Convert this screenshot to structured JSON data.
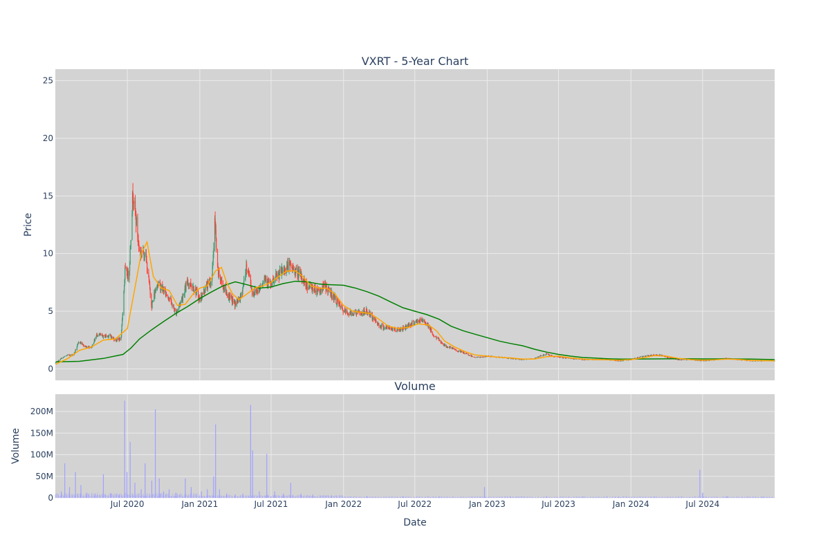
{
  "chart_data": [
    {
      "type": "candlestick",
      "title": "VXRT - 5-Year Chart",
      "xlabel": "",
      "ylabel": "Price",
      "ylim": [
        -1,
        26
      ],
      "yticks": [
        0,
        5,
        10,
        15,
        20,
        25
      ],
      "xlim": [
        "2019-12-31",
        "2024-12-31"
      ],
      "x_ticks": [
        {
          "date": "2020-07-01",
          "label": "Jul 2020"
        },
        {
          "date": "2021-01-01",
          "label": "Jan 2021"
        },
        {
          "date": "2021-07-01",
          "label": "Jul 2021"
        },
        {
          "date": "2022-01-01",
          "label": "Jan 2022"
        },
        {
          "date": "2022-07-01",
          "label": "Jul 2022"
        },
        {
          "date": "2023-01-01",
          "label": "Jan 2023"
        },
        {
          "date": "2023-07-01",
          "label": "Jul 2023"
        },
        {
          "date": "2024-01-01",
          "label": "Jan 2024"
        },
        {
          "date": "2024-07-01",
          "label": "Jul 2024"
        }
      ],
      "grid": true,
      "legend": "none",
      "colors": {
        "increasing": "#3d9970",
        "decreasing": "#ff4136",
        "ma_short": "#ffa500",
        "ma_long": "#008000",
        "plot_bg": "#d3d3d3",
        "grid": "#ebebeb"
      },
      "close_series": [
        [
          "2020-01-01",
          0.5
        ],
        [
          "2020-01-15",
          0.9
        ],
        [
          "2020-02-01",
          1.2
        ],
        [
          "2020-02-15",
          1.2
        ],
        [
          "2020-03-01",
          2.4
        ],
        [
          "2020-03-15",
          1.9
        ],
        [
          "2020-04-01",
          1.9
        ],
        [
          "2020-04-15",
          3.0
        ],
        [
          "2020-05-01",
          2.8
        ],
        [
          "2020-05-15",
          2.9
        ],
        [
          "2020-06-01",
          2.5
        ],
        [
          "2020-06-15",
          2.6
        ],
        [
          "2020-06-25",
          8.5
        ],
        [
          "2020-07-05",
          8.0
        ],
        [
          "2020-07-15",
          15.5
        ],
        [
          "2020-08-01",
          10.0
        ],
        [
          "2020-08-15",
          10.2
        ],
        [
          "2020-09-01",
          5.5
        ],
        [
          "2020-09-15",
          7.5
        ],
        [
          "2020-10-01",
          6.8
        ],
        [
          "2020-10-15",
          6.2
        ],
        [
          "2020-11-01",
          4.8
        ],
        [
          "2020-11-15",
          6.0
        ],
        [
          "2020-12-01",
          7.5
        ],
        [
          "2020-12-15",
          7.2
        ],
        [
          "2021-01-01",
          6.0
        ],
        [
          "2021-01-15",
          7.0
        ],
        [
          "2021-02-01",
          7.8
        ],
        [
          "2021-02-08",
          13.0
        ],
        [
          "2021-02-15",
          8.5
        ],
        [
          "2021-03-01",
          7.2
        ],
        [
          "2021-03-15",
          6.3
        ],
        [
          "2021-04-01",
          5.6
        ],
        [
          "2021-04-15",
          6.2
        ],
        [
          "2021-05-01",
          9.0
        ],
        [
          "2021-05-15",
          6.5
        ],
        [
          "2021-06-01",
          7.0
        ],
        [
          "2021-06-15",
          8.0
        ],
        [
          "2021-07-01",
          7.2
        ],
        [
          "2021-07-15",
          8.0
        ],
        [
          "2021-08-01",
          8.5
        ],
        [
          "2021-08-15",
          9.0
        ],
        [
          "2021-09-01",
          8.5
        ],
        [
          "2021-09-15",
          8.0
        ],
        [
          "2021-10-01",
          7.2
        ],
        [
          "2021-10-15",
          7.0
        ],
        [
          "2021-11-01",
          6.8
        ],
        [
          "2021-11-15",
          7.2
        ],
        [
          "2021-12-01",
          6.5
        ],
        [
          "2021-12-15",
          5.8
        ],
        [
          "2022-01-01",
          5.0
        ],
        [
          "2022-01-15",
          4.8
        ],
        [
          "2022-02-01",
          4.9
        ],
        [
          "2022-02-15",
          4.8
        ],
        [
          "2022-03-01",
          5.0
        ],
        [
          "2022-03-15",
          4.5
        ],
        [
          "2022-04-01",
          3.8
        ],
        [
          "2022-04-15",
          3.6
        ],
        [
          "2022-05-01",
          3.5
        ],
        [
          "2022-05-15",
          3.4
        ],
        [
          "2022-06-01",
          3.5
        ],
        [
          "2022-06-15",
          3.8
        ],
        [
          "2022-07-01",
          4.0
        ],
        [
          "2022-07-15",
          4.2
        ],
        [
          "2022-08-01",
          4.0
        ],
        [
          "2022-08-15",
          3.0
        ],
        [
          "2022-09-01",
          2.5
        ],
        [
          "2022-09-15",
          2.0
        ],
        [
          "2022-10-01",
          1.8
        ],
        [
          "2022-10-15",
          1.6
        ],
        [
          "2022-11-01",
          1.4
        ],
        [
          "2022-11-15",
          1.2
        ],
        [
          "2022-12-01",
          1.0
        ],
        [
          "2022-12-15",
          1.0
        ],
        [
          "2023-01-01",
          1.1
        ],
        [
          "2023-02-01",
          1.0
        ],
        [
          "2023-03-01",
          0.9
        ],
        [
          "2023-04-01",
          0.8
        ],
        [
          "2023-05-01",
          0.9
        ],
        [
          "2023-06-01",
          1.3
        ],
        [
          "2023-06-15",
          1.1
        ],
        [
          "2023-07-01",
          1.0
        ],
        [
          "2023-08-01",
          0.9
        ],
        [
          "2023-09-01",
          0.8
        ],
        [
          "2023-10-01",
          0.8
        ],
        [
          "2023-11-01",
          0.8
        ],
        [
          "2023-12-01",
          0.7
        ],
        [
          "2024-01-01",
          0.8
        ],
        [
          "2024-02-01",
          1.1
        ],
        [
          "2024-03-01",
          1.2
        ],
        [
          "2024-03-15",
          1.2
        ],
        [
          "2024-04-01",
          1.0
        ],
        [
          "2024-05-01",
          0.8
        ],
        [
          "2024-06-01",
          0.8
        ],
        [
          "2024-07-01",
          0.7
        ],
        [
          "2024-08-01",
          0.8
        ],
        [
          "2024-09-01",
          0.9
        ],
        [
          "2024-10-01",
          0.8
        ],
        [
          "2024-11-01",
          0.7
        ],
        [
          "2024-12-01",
          0.7
        ],
        [
          "2024-12-31",
          0.7
        ]
      ],
      "ma_short": [
        [
          "2020-01-01",
          0.4
        ],
        [
          "2020-02-01",
          0.9
        ],
        [
          "2020-03-01",
          1.6
        ],
        [
          "2020-04-01",
          1.9
        ],
        [
          "2020-05-01",
          2.5
        ],
        [
          "2020-06-01",
          2.6
        ],
        [
          "2020-07-01",
          3.5
        ],
        [
          "2020-07-20",
          7.0
        ],
        [
          "2020-08-05",
          10.0
        ],
        [
          "2020-08-20",
          11.0
        ],
        [
          "2020-09-05",
          8.0
        ],
        [
          "2020-09-25",
          7.0
        ],
        [
          "2020-10-15",
          6.8
        ],
        [
          "2020-11-05",
          5.5
        ],
        [
          "2020-11-25",
          5.6
        ],
        [
          "2020-12-15",
          6.5
        ],
        [
          "2021-01-01",
          7.0
        ],
        [
          "2021-01-20",
          7.2
        ],
        [
          "2021-02-10",
          8.5
        ],
        [
          "2021-02-25",
          8.8
        ],
        [
          "2021-03-10",
          7.5
        ],
        [
          "2021-03-25",
          6.5
        ],
        [
          "2021-04-10",
          6.0
        ],
        [
          "2021-05-01",
          6.5
        ],
        [
          "2021-05-20",
          7.0
        ],
        [
          "2021-06-10",
          7.2
        ],
        [
          "2021-07-01",
          7.5
        ],
        [
          "2021-07-20",
          8.0
        ],
        [
          "2021-08-10",
          8.5
        ],
        [
          "2021-09-01",
          8.5
        ],
        [
          "2021-09-20",
          8.0
        ],
        [
          "2021-10-10",
          7.2
        ],
        [
          "2021-11-01",
          7.0
        ],
        [
          "2021-11-20",
          7.0
        ],
        [
          "2021-12-10",
          6.5
        ],
        [
          "2022-01-01",
          5.5
        ],
        [
          "2022-01-25",
          5.0
        ],
        [
          "2022-02-15",
          4.9
        ],
        [
          "2022-03-10",
          4.8
        ],
        [
          "2022-04-01",
          4.3
        ],
        [
          "2022-04-25",
          3.7
        ],
        [
          "2022-05-20",
          3.5
        ],
        [
          "2022-06-15",
          3.6
        ],
        [
          "2022-07-10",
          3.9
        ],
        [
          "2022-08-05",
          3.8
        ],
        [
          "2022-08-25",
          3.3
        ],
        [
          "2022-09-15",
          2.4
        ],
        [
          "2022-10-10",
          1.9
        ],
        [
          "2022-11-05",
          1.5
        ],
        [
          "2022-12-01",
          1.2
        ],
        [
          "2023-01-01",
          1.1
        ],
        [
          "2023-02-01",
          1.0
        ],
        [
          "2023-03-01",
          0.95
        ],
        [
          "2023-04-01",
          0.85
        ],
        [
          "2023-05-01",
          0.85
        ],
        [
          "2023-06-01",
          1.05
        ],
        [
          "2023-07-01",
          1.1
        ],
        [
          "2023-08-01",
          0.95
        ],
        [
          "2023-09-01",
          0.85
        ],
        [
          "2023-10-01",
          0.8
        ],
        [
          "2023-11-01",
          0.78
        ],
        [
          "2023-12-01",
          0.75
        ],
        [
          "2024-01-01",
          0.8
        ],
        [
          "2024-02-01",
          0.95
        ],
        [
          "2024-03-01",
          1.15
        ],
        [
          "2024-04-01",
          1.1
        ],
        [
          "2024-05-01",
          0.9
        ],
        [
          "2024-06-01",
          0.8
        ],
        [
          "2024-07-01",
          0.75
        ],
        [
          "2024-08-01",
          0.78
        ],
        [
          "2024-09-01",
          0.85
        ],
        [
          "2024-10-01",
          0.82
        ],
        [
          "2024-11-01",
          0.72
        ],
        [
          "2024-12-31",
          0.7
        ]
      ],
      "ma_long": [
        [
          "2020-01-01",
          0.6
        ],
        [
          "2020-03-01",
          0.65
        ],
        [
          "2020-05-01",
          0.9
        ],
        [
          "2020-06-20",
          1.25
        ],
        [
          "2020-07-10",
          1.8
        ],
        [
          "2020-08-01",
          2.6
        ],
        [
          "2020-09-01",
          3.4
        ],
        [
          "2020-10-01",
          4.1
        ],
        [
          "2020-11-01",
          4.8
        ],
        [
          "2020-12-01",
          5.4
        ],
        [
          "2021-01-01",
          6.1
        ],
        [
          "2021-02-01",
          6.7
        ],
        [
          "2021-03-01",
          7.2
        ],
        [
          "2021-04-01",
          7.55
        ],
        [
          "2021-05-01",
          7.3
        ],
        [
          "2021-06-01",
          7.0
        ],
        [
          "2021-07-01",
          7.1
        ],
        [
          "2021-08-01",
          7.4
        ],
        [
          "2021-09-01",
          7.6
        ],
        [
          "2021-10-01",
          7.55
        ],
        [
          "2021-11-01",
          7.35
        ],
        [
          "2021-12-01",
          7.3
        ],
        [
          "2022-01-01",
          7.25
        ],
        [
          "2022-02-01",
          7.0
        ],
        [
          "2022-03-01",
          6.7
        ],
        [
          "2022-04-01",
          6.3
        ],
        [
          "2022-05-01",
          5.8
        ],
        [
          "2022-06-01",
          5.3
        ],
        [
          "2022-07-01",
          5.0
        ],
        [
          "2022-08-01",
          4.7
        ],
        [
          "2022-09-01",
          4.3
        ],
        [
          "2022-10-01",
          3.7
        ],
        [
          "2022-11-01",
          3.3
        ],
        [
          "2022-12-01",
          3.0
        ],
        [
          "2023-01-01",
          2.7
        ],
        [
          "2023-02-01",
          2.4
        ],
        [
          "2023-03-01",
          2.2
        ],
        [
          "2023-04-01",
          2.0
        ],
        [
          "2023-05-01",
          1.7
        ],
        [
          "2023-06-01",
          1.45
        ],
        [
          "2023-07-01",
          1.25
        ],
        [
          "2023-08-01",
          1.1
        ],
        [
          "2023-09-01",
          0.98
        ],
        [
          "2023-10-01",
          0.93
        ],
        [
          "2023-11-01",
          0.88
        ],
        [
          "2023-12-01",
          0.85
        ],
        [
          "2024-01-01",
          0.84
        ],
        [
          "2024-03-01",
          0.86
        ],
        [
          "2024-05-01",
          0.87
        ],
        [
          "2024-07-01",
          0.86
        ],
        [
          "2024-09-01",
          0.86
        ],
        [
          "2024-11-01",
          0.85
        ],
        [
          "2024-12-31",
          0.8
        ]
      ]
    },
    {
      "type": "bar",
      "title": "Volume",
      "xlabel": "Date",
      "ylabel": "Volume",
      "ylim": [
        0,
        240
      ],
      "yticks": [
        {
          "value": 0,
          "label": "0"
        },
        {
          "value": 50,
          "label": "50M"
        },
        {
          "value": 100,
          "label": "100M"
        },
        {
          "value": 150,
          "label": "150M"
        },
        {
          "value": 200,
          "label": "200M"
        }
      ],
      "units": "millions of shares",
      "color": "#a0a0ff",
      "spikes": [
        [
          "2020-01-15",
          15
        ],
        [
          "2020-01-24",
          80
        ],
        [
          "2020-02-05",
          25
        ],
        [
          "2020-02-20",
          60
        ],
        [
          "2020-03-05",
          30
        ],
        [
          "2020-03-20",
          12
        ],
        [
          "2020-04-10",
          10
        ],
        [
          "2020-05-01",
          55
        ],
        [
          "2020-05-20",
          10
        ],
        [
          "2020-06-10",
          8
        ],
        [
          "2020-06-24",
          225
        ],
        [
          "2020-06-30",
          60
        ],
        [
          "2020-07-08",
          130
        ],
        [
          "2020-07-20",
          35
        ],
        [
          "2020-08-05",
          20
        ],
        [
          "2020-08-15",
          80
        ],
        [
          "2020-09-01",
          40
        ],
        [
          "2020-09-10",
          205
        ],
        [
          "2020-09-20",
          45
        ],
        [
          "2020-10-01",
          15
        ],
        [
          "2020-10-15",
          20
        ],
        [
          "2020-11-01",
          12
        ],
        [
          "2020-11-25",
          45
        ],
        [
          "2020-12-10",
          25
        ],
        [
          "2021-01-05",
          15
        ],
        [
          "2021-01-20",
          20
        ],
        [
          "2021-02-05",
          50
        ],
        [
          "2021-02-10",
          170
        ],
        [
          "2021-02-20",
          20
        ],
        [
          "2021-03-10",
          10
        ],
        [
          "2021-04-01",
          8
        ],
        [
          "2021-04-20",
          10
        ],
        [
          "2021-05-10",
          215
        ],
        [
          "2021-05-15",
          110
        ],
        [
          "2021-06-01",
          15
        ],
        [
          "2021-06-20",
          102
        ],
        [
          "2021-07-10",
          15
        ],
        [
          "2021-08-01",
          10
        ],
        [
          "2021-08-20",
          35
        ],
        [
          "2021-09-15",
          10
        ],
        [
          "2021-10-15",
          8
        ],
        [
          "2021-12-01",
          5
        ],
        [
          "2022-03-01",
          4
        ],
        [
          "2022-06-01",
          4
        ],
        [
          "2022-09-01",
          3
        ],
        [
          "2022-12-25",
          25
        ],
        [
          "2023-03-01",
          3
        ],
        [
          "2023-06-01",
          4
        ],
        [
          "2023-09-01",
          3
        ],
        [
          "2023-12-01",
          3
        ],
        [
          "2024-03-01",
          3
        ],
        [
          "2024-06-24",
          65
        ],
        [
          "2024-07-01",
          12
        ],
        [
          "2024-09-01",
          4
        ],
        [
          "2024-12-01",
          3
        ]
      ]
    }
  ]
}
